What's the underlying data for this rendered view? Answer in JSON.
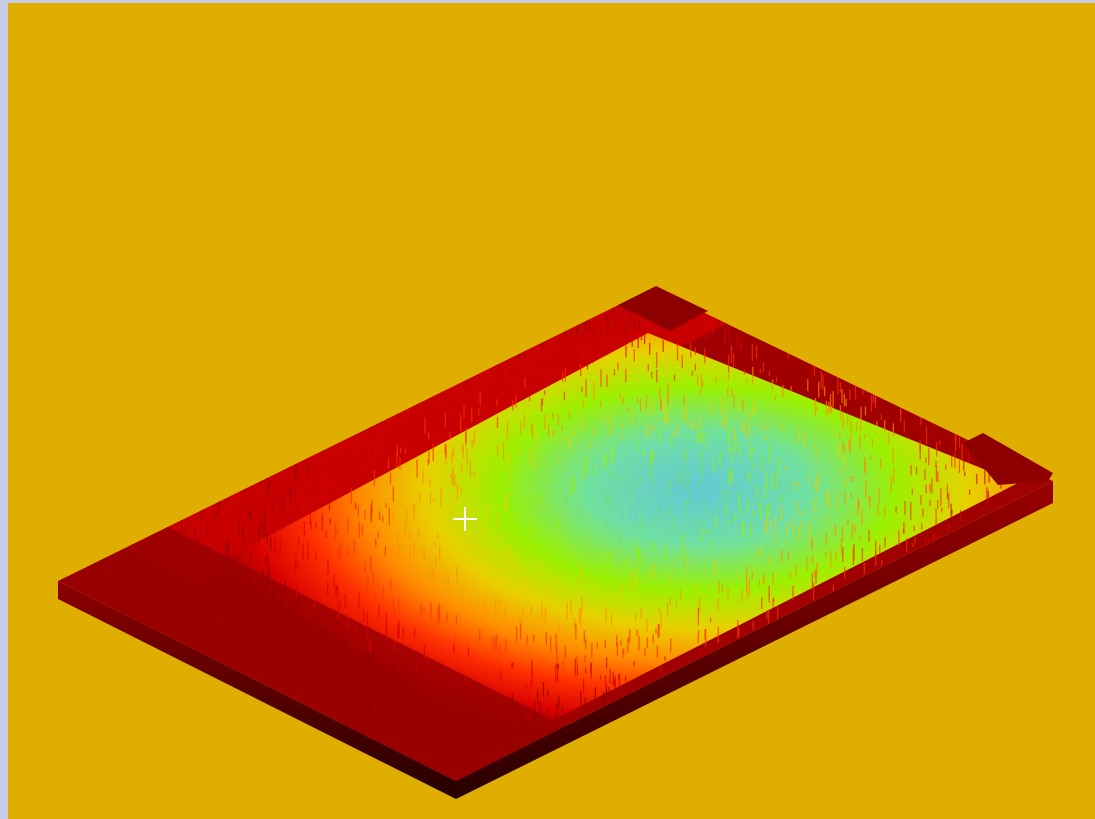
{
  "colors": {
    "background": "#DFAE00",
    "window_frame": "#C9CDE6",
    "base_dark": "#8E0000",
    "base_shadow": "#2A0000",
    "cursor": "#FFFFFF"
  },
  "scene": {
    "content": "3d-surface-render",
    "colormap": [
      "#8E0000",
      "#D80000",
      "#FF3000",
      "#FF8C00",
      "#E8D000",
      "#9CF000",
      "#70E070",
      "#62C8D8"
    ]
  },
  "icons": {
    "cursor": "crosshair-icon"
  }
}
